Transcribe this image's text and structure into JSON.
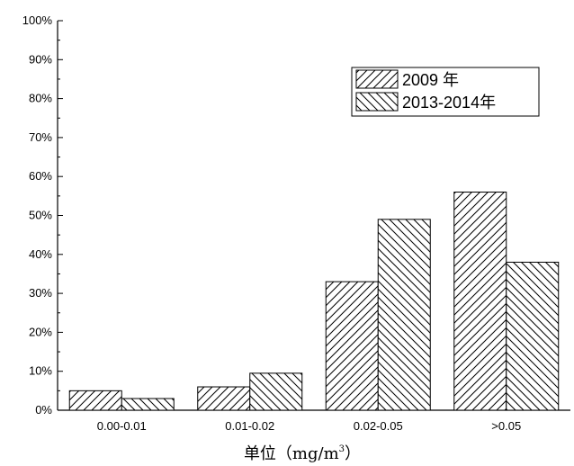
{
  "chart_data": {
    "type": "bar",
    "categories": [
      "0.00-0.01",
      "0.01-0.02",
      "0.02-0.05",
      ">0.05"
    ],
    "series": [
      {
        "name": "2009 年",
        "values": [
          5,
          6,
          33,
          56
        ],
        "pattern": "forward-diagonal"
      },
      {
        "name": "2013-2014年",
        "values": [
          3,
          9.5,
          49,
          38
        ],
        "pattern": "back-diagonal"
      }
    ],
    "ylim": [
      0,
      100
    ],
    "yticks": [
      "0%",
      "10%",
      "20%",
      "30%",
      "40%",
      "50%",
      "60%",
      "70%",
      "80%",
      "90%",
      "100%"
    ],
    "xlabel_main": "单位（mg/m",
    "xlabel_sup": "3",
    "xlabel_end": "）",
    "grid": false,
    "legend_position": "top-right",
    "colors": {
      "stroke": "#000000",
      "fill": "#ffffff"
    }
  }
}
